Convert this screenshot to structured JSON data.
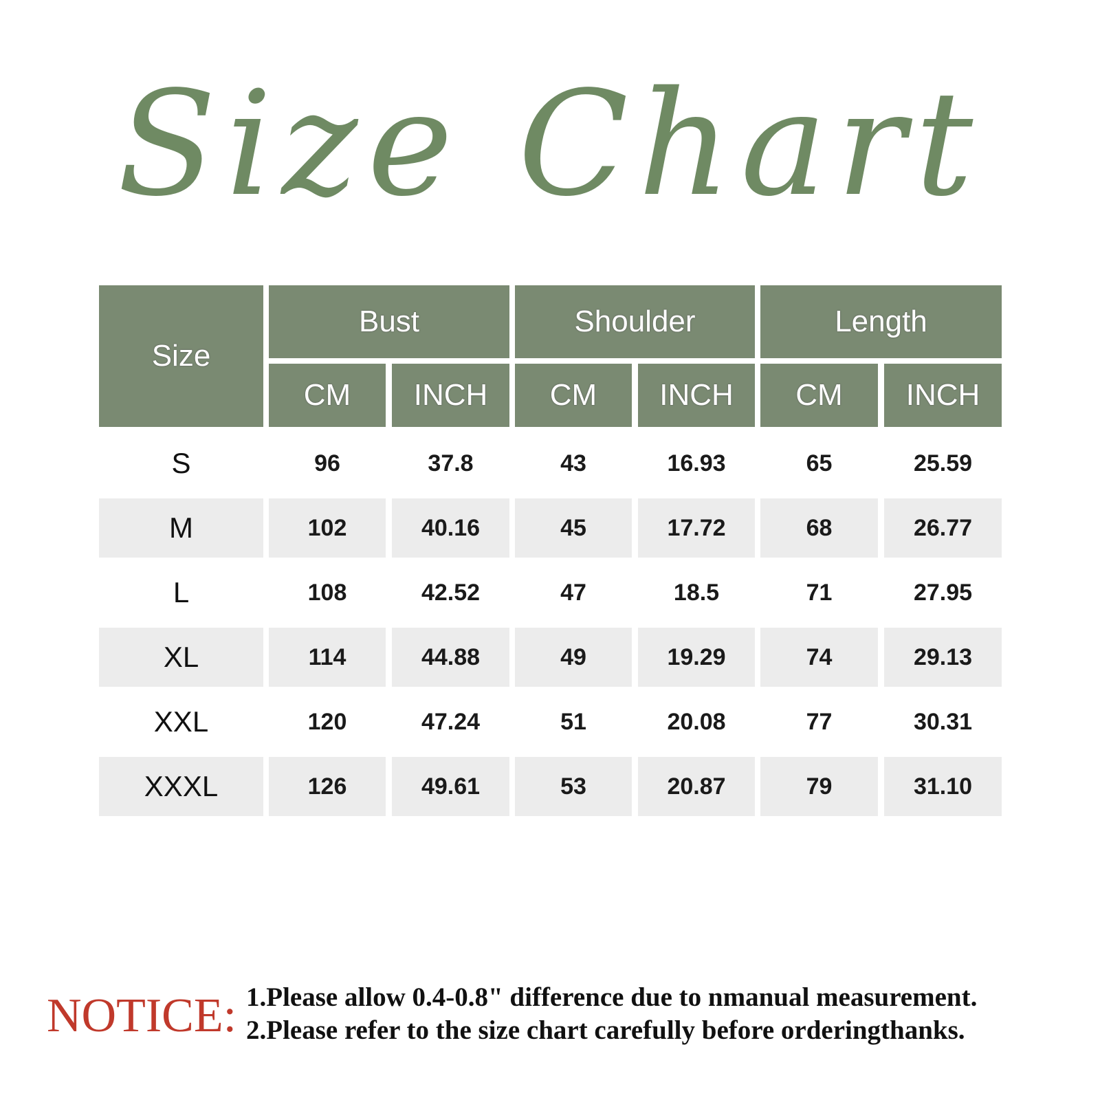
{
  "title": "Size Chart",
  "colors": {
    "header_bg": "#7a8a72",
    "title": "#6f8a63",
    "notice": "#c0392b",
    "row_shade": "#ececec"
  },
  "table": {
    "size_header": "Size",
    "groups": [
      "Bust",
      "Shoulder",
      "Length"
    ],
    "units": [
      "CM",
      "INCH",
      "CM",
      "INCH",
      "CM",
      "INCH"
    ],
    "rows": [
      {
        "size": "S",
        "values": [
          "96",
          "37.8",
          "43",
          "16.93",
          "65",
          "25.59"
        ]
      },
      {
        "size": "M",
        "values": [
          "102",
          "40.16",
          "45",
          "17.72",
          "68",
          "26.77"
        ]
      },
      {
        "size": "L",
        "values": [
          "108",
          "42.52",
          "47",
          "18.5",
          "71",
          "27.95"
        ]
      },
      {
        "size": "XL",
        "values": [
          "114",
          "44.88",
          "49",
          "19.29",
          "74",
          "29.13"
        ]
      },
      {
        "size": "XXL",
        "values": [
          "120",
          "47.24",
          "51",
          "20.08",
          "77",
          "30.31"
        ]
      },
      {
        "size": "XXXL",
        "values": [
          "126",
          "49.61",
          "53",
          "20.87",
          "79",
          "31.10"
        ]
      }
    ]
  },
  "notice": {
    "label": "NOTICE:",
    "lines": [
      "1.Please allow 0.4-0.8\" difference due to nmanual measurement.",
      "2.Please refer to the size chart carefully before orderingthanks."
    ]
  }
}
